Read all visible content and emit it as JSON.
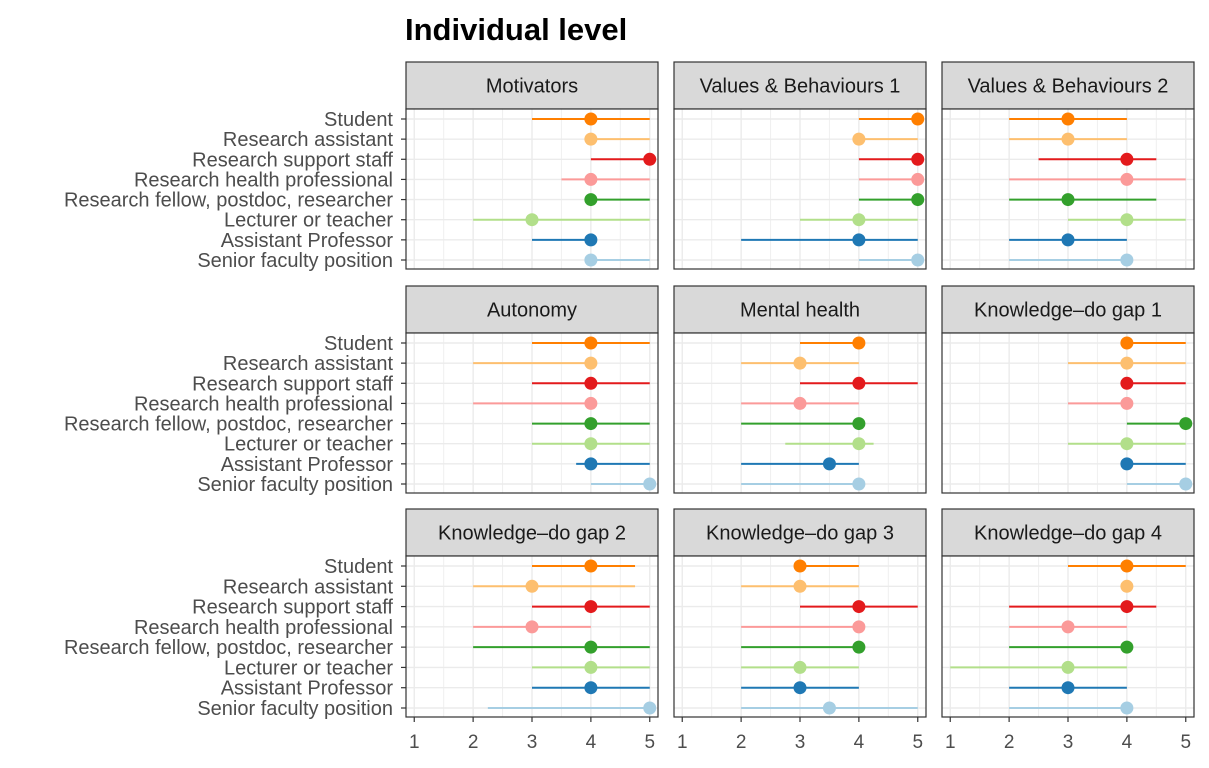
{
  "chart_data": {
    "type": "scatter",
    "title": "Individual level",
    "xlim": [
      0.86,
      5.14
    ],
    "x_ticks": [
      1,
      2,
      3,
      4,
      5
    ],
    "grid": true,
    "categories": [
      "Student",
      "Research assistant",
      "Research support staff",
      "Research health professional",
      "Research fellow, postdoc, researcher",
      "Lecturer or teacher",
      "Assistant Professor",
      "Senior faculty position"
    ],
    "colors": [
      "#FF7F00",
      "#FDBF6F",
      "#E31A1C",
      "#FB9A99",
      "#33A02C",
      "#B2DF8A",
      "#1F78B4",
      "#A6CEE3"
    ],
    "panels": [
      {
        "name": "Motivators",
        "series": [
          {
            "category": "Student",
            "point": 4,
            "low": 3,
            "high": 5
          },
          {
            "category": "Research assistant",
            "point": 4,
            "low": 4,
            "high": 5
          },
          {
            "category": "Research support staff",
            "point": 5,
            "low": 4,
            "high": 5
          },
          {
            "category": "Research health professional",
            "point": 4,
            "low": 3.5,
            "high": 5
          },
          {
            "category": "Research fellow, postdoc, researcher",
            "point": 4,
            "low": 4,
            "high": 5
          },
          {
            "category": "Lecturer or teacher",
            "point": 3,
            "low": 2,
            "high": 5
          },
          {
            "category": "Assistant Professor",
            "point": 4,
            "low": 3,
            "high": 4
          },
          {
            "category": "Senior faculty position",
            "point": 4,
            "low": 4,
            "high": 5
          }
        ]
      },
      {
        "name": "Values & Behaviours 1",
        "series": [
          {
            "category": "Student",
            "point": 5,
            "low": 4,
            "high": 5
          },
          {
            "category": "Research assistant",
            "point": 4,
            "low": 4,
            "high": 5
          },
          {
            "category": "Research support staff",
            "point": 5,
            "low": 4,
            "high": 5
          },
          {
            "category": "Research health professional",
            "point": 5,
            "low": 4,
            "high": 5
          },
          {
            "category": "Research fellow, postdoc, researcher",
            "point": 5,
            "low": 4,
            "high": 5
          },
          {
            "category": "Lecturer or teacher",
            "point": 4,
            "low": 3,
            "high": 5
          },
          {
            "category": "Assistant Professor",
            "point": 4,
            "low": 2,
            "high": 5
          },
          {
            "category": "Senior faculty position",
            "point": 5,
            "low": 4,
            "high": 5
          }
        ]
      },
      {
        "name": "Values & Behaviours 2",
        "series": [
          {
            "category": "Student",
            "point": 3,
            "low": 2,
            "high": 4
          },
          {
            "category": "Research assistant",
            "point": 3,
            "low": 2,
            "high": 4
          },
          {
            "category": "Research support staff",
            "point": 4,
            "low": 2.5,
            "high": 4.5
          },
          {
            "category": "Research health professional",
            "point": 4,
            "low": 2,
            "high": 5
          },
          {
            "category": "Research fellow, postdoc, researcher",
            "point": 3,
            "low": 2,
            "high": 4.5
          },
          {
            "category": "Lecturer or teacher",
            "point": 4,
            "low": 3,
            "high": 5
          },
          {
            "category": "Assistant Professor",
            "point": 3,
            "low": 2,
            "high": 4
          },
          {
            "category": "Senior faculty position",
            "point": 4,
            "low": 2,
            "high": 4
          }
        ]
      },
      {
        "name": "Autonomy",
        "series": [
          {
            "category": "Student",
            "point": 4,
            "low": 3,
            "high": 5
          },
          {
            "category": "Research assistant",
            "point": 4,
            "low": 2,
            "high": 4
          },
          {
            "category": "Research support staff",
            "point": 4,
            "low": 3,
            "high": 5
          },
          {
            "category": "Research health professional",
            "point": 4,
            "low": 2,
            "high": 4
          },
          {
            "category": "Research fellow, postdoc, researcher",
            "point": 4,
            "low": 3,
            "high": 5
          },
          {
            "category": "Lecturer or teacher",
            "point": 4,
            "low": 3,
            "high": 5
          },
          {
            "category": "Assistant Professor",
            "point": 4,
            "low": 3.75,
            "high": 5
          },
          {
            "category": "Senior faculty position",
            "point": 5,
            "low": 4,
            "high": 5
          }
        ]
      },
      {
        "name": "Mental health",
        "series": [
          {
            "category": "Student",
            "point": 4,
            "low": 3,
            "high": 4
          },
          {
            "category": "Research assistant",
            "point": 3,
            "low": 2,
            "high": 4
          },
          {
            "category": "Research support staff",
            "point": 4,
            "low": 3,
            "high": 5
          },
          {
            "category": "Research health professional",
            "point": 3,
            "low": 2,
            "high": 4
          },
          {
            "category": "Research fellow, postdoc, researcher",
            "point": 4,
            "low": 2,
            "high": 4
          },
          {
            "category": "Lecturer or teacher",
            "point": 4,
            "low": 2.75,
            "high": 4.25
          },
          {
            "category": "Assistant Professor",
            "point": 3.5,
            "low": 2,
            "high": 4
          },
          {
            "category": "Senior faculty position",
            "point": 4,
            "low": 2,
            "high": 4
          }
        ]
      },
      {
        "name": "Knowledge–do gap 1",
        "series": [
          {
            "category": "Student",
            "point": 4,
            "low": 4,
            "high": 5
          },
          {
            "category": "Research assistant",
            "point": 4,
            "low": 3,
            "high": 5
          },
          {
            "category": "Research support staff",
            "point": 4,
            "low": 4,
            "high": 5
          },
          {
            "category": "Research health professional",
            "point": 4,
            "low": 3,
            "high": 4
          },
          {
            "category": "Research fellow, postdoc, researcher",
            "point": 5,
            "low": 4,
            "high": 5
          },
          {
            "category": "Lecturer or teacher",
            "point": 4,
            "low": 3,
            "high": 5
          },
          {
            "category": "Assistant Professor",
            "point": 4,
            "low": 4,
            "high": 5
          },
          {
            "category": "Senior faculty position",
            "point": 5,
            "low": 4,
            "high": 5
          }
        ]
      },
      {
        "name": "Knowledge–do gap 2",
        "series": [
          {
            "category": "Student",
            "point": 4,
            "low": 3,
            "high": 4.75
          },
          {
            "category": "Research assistant",
            "point": 3,
            "low": 2,
            "high": 4.75
          },
          {
            "category": "Research support staff",
            "point": 4,
            "low": 3,
            "high": 5
          },
          {
            "category": "Research health professional",
            "point": 3,
            "low": 2,
            "high": 4
          },
          {
            "category": "Research fellow, postdoc, researcher",
            "point": 4,
            "low": 2,
            "high": 5
          },
          {
            "category": "Lecturer or teacher",
            "point": 4,
            "low": 3,
            "high": 5
          },
          {
            "category": "Assistant Professor",
            "point": 4,
            "low": 3,
            "high": 5
          },
          {
            "category": "Senior faculty position",
            "point": 5,
            "low": 2.25,
            "high": 5
          }
        ]
      },
      {
        "name": "Knowledge–do gap 3",
        "series": [
          {
            "category": "Student",
            "point": 3,
            "low": 3,
            "high": 4
          },
          {
            "category": "Research assistant",
            "point": 3,
            "low": 2,
            "high": 4
          },
          {
            "category": "Research support staff",
            "point": 4,
            "low": 3,
            "high": 5
          },
          {
            "category": "Research health professional",
            "point": 4,
            "low": 2,
            "high": 4
          },
          {
            "category": "Research fellow, postdoc, researcher",
            "point": 4,
            "low": 2,
            "high": 4
          },
          {
            "category": "Lecturer or teacher",
            "point": 3,
            "low": 2,
            "high": 4
          },
          {
            "category": "Assistant Professor",
            "point": 3,
            "low": 2,
            "high": 4
          },
          {
            "category": "Senior faculty position",
            "point": 3.5,
            "low": 2,
            "high": 5
          }
        ]
      },
      {
        "name": "Knowledge–do gap 4",
        "series": [
          {
            "category": "Student",
            "point": 4,
            "low": 3,
            "high": 5
          },
          {
            "category": "Research assistant",
            "point": 4,
            "low": 4,
            "high": 4
          },
          {
            "category": "Research support staff",
            "point": 4,
            "low": 2,
            "high": 4.5
          },
          {
            "category": "Research health professional",
            "point": 3,
            "low": 2,
            "high": 4
          },
          {
            "category": "Research fellow, postdoc, researcher",
            "point": 4,
            "low": 2,
            "high": 4
          },
          {
            "category": "Lecturer or teacher",
            "point": 3,
            "low": 1,
            "high": 4
          },
          {
            "category": "Assistant Professor",
            "point": 3,
            "low": 2,
            "high": 4
          },
          {
            "category": "Senior faculty position",
            "point": 4,
            "low": 2,
            "high": 4
          }
        ]
      }
    ]
  }
}
